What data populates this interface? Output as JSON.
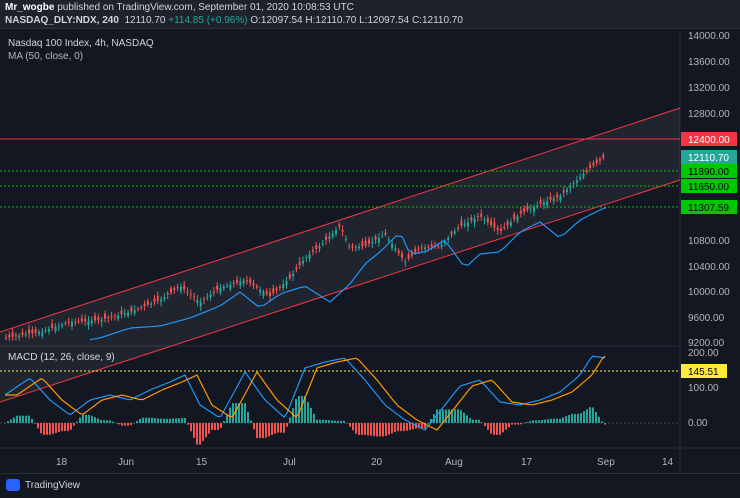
{
  "header": {
    "publisher": "Mr_wogbe",
    "published_text": "published on TradingView.com, September 01, 2020 10:08:53 UTC",
    "symbol": "NASDAQ_DLY:NDX, 240",
    "last": "12110.70",
    "change": "+114.85 (+0.96%)",
    "ohlc": "O:12097.54 H:12110.70 L:12097.54 C:12110.70"
  },
  "chart": {
    "title": "Nasdaq 100 Index, 4h, NASDAQ",
    "ma_label": "MA (50, close, 0)",
    "price_ticks": [
      "14000.00",
      "13600.00",
      "13200.00",
      "12800.00",
      "10800.00",
      "10400.00",
      "10000.00",
      "9600.00",
      "9200.00"
    ],
    "tags": [
      {
        "label": "12400.00",
        "color": "#f23645"
      },
      {
        "label": "12110.70",
        "color": "#26a69a"
      },
      {
        "label": "11890.00",
        "color": "#00c800"
      },
      {
        "label": "11650.00",
        "color": "#00c800"
      },
      {
        "label": "11307.59",
        "color": "#00c800"
      }
    ],
    "time_labels": [
      "18",
      "Jun",
      "15",
      "Jul",
      "20",
      "Aug",
      "17",
      "Sep",
      "14"
    ]
  },
  "macd": {
    "title": "MACD (12, 26, close, 9)",
    "ticks": [
      "200.00",
      "100.00",
      "0.00"
    ],
    "tag": "145.51",
    "tag_color": "#ffeb3b"
  },
  "footer": {
    "brand": "TradingView"
  },
  "colors": {
    "up": "#26a69a",
    "down": "#ef5350",
    "ma": "#2196f3",
    "signal": "#ff9800",
    "channel": "#f23645"
  }
}
